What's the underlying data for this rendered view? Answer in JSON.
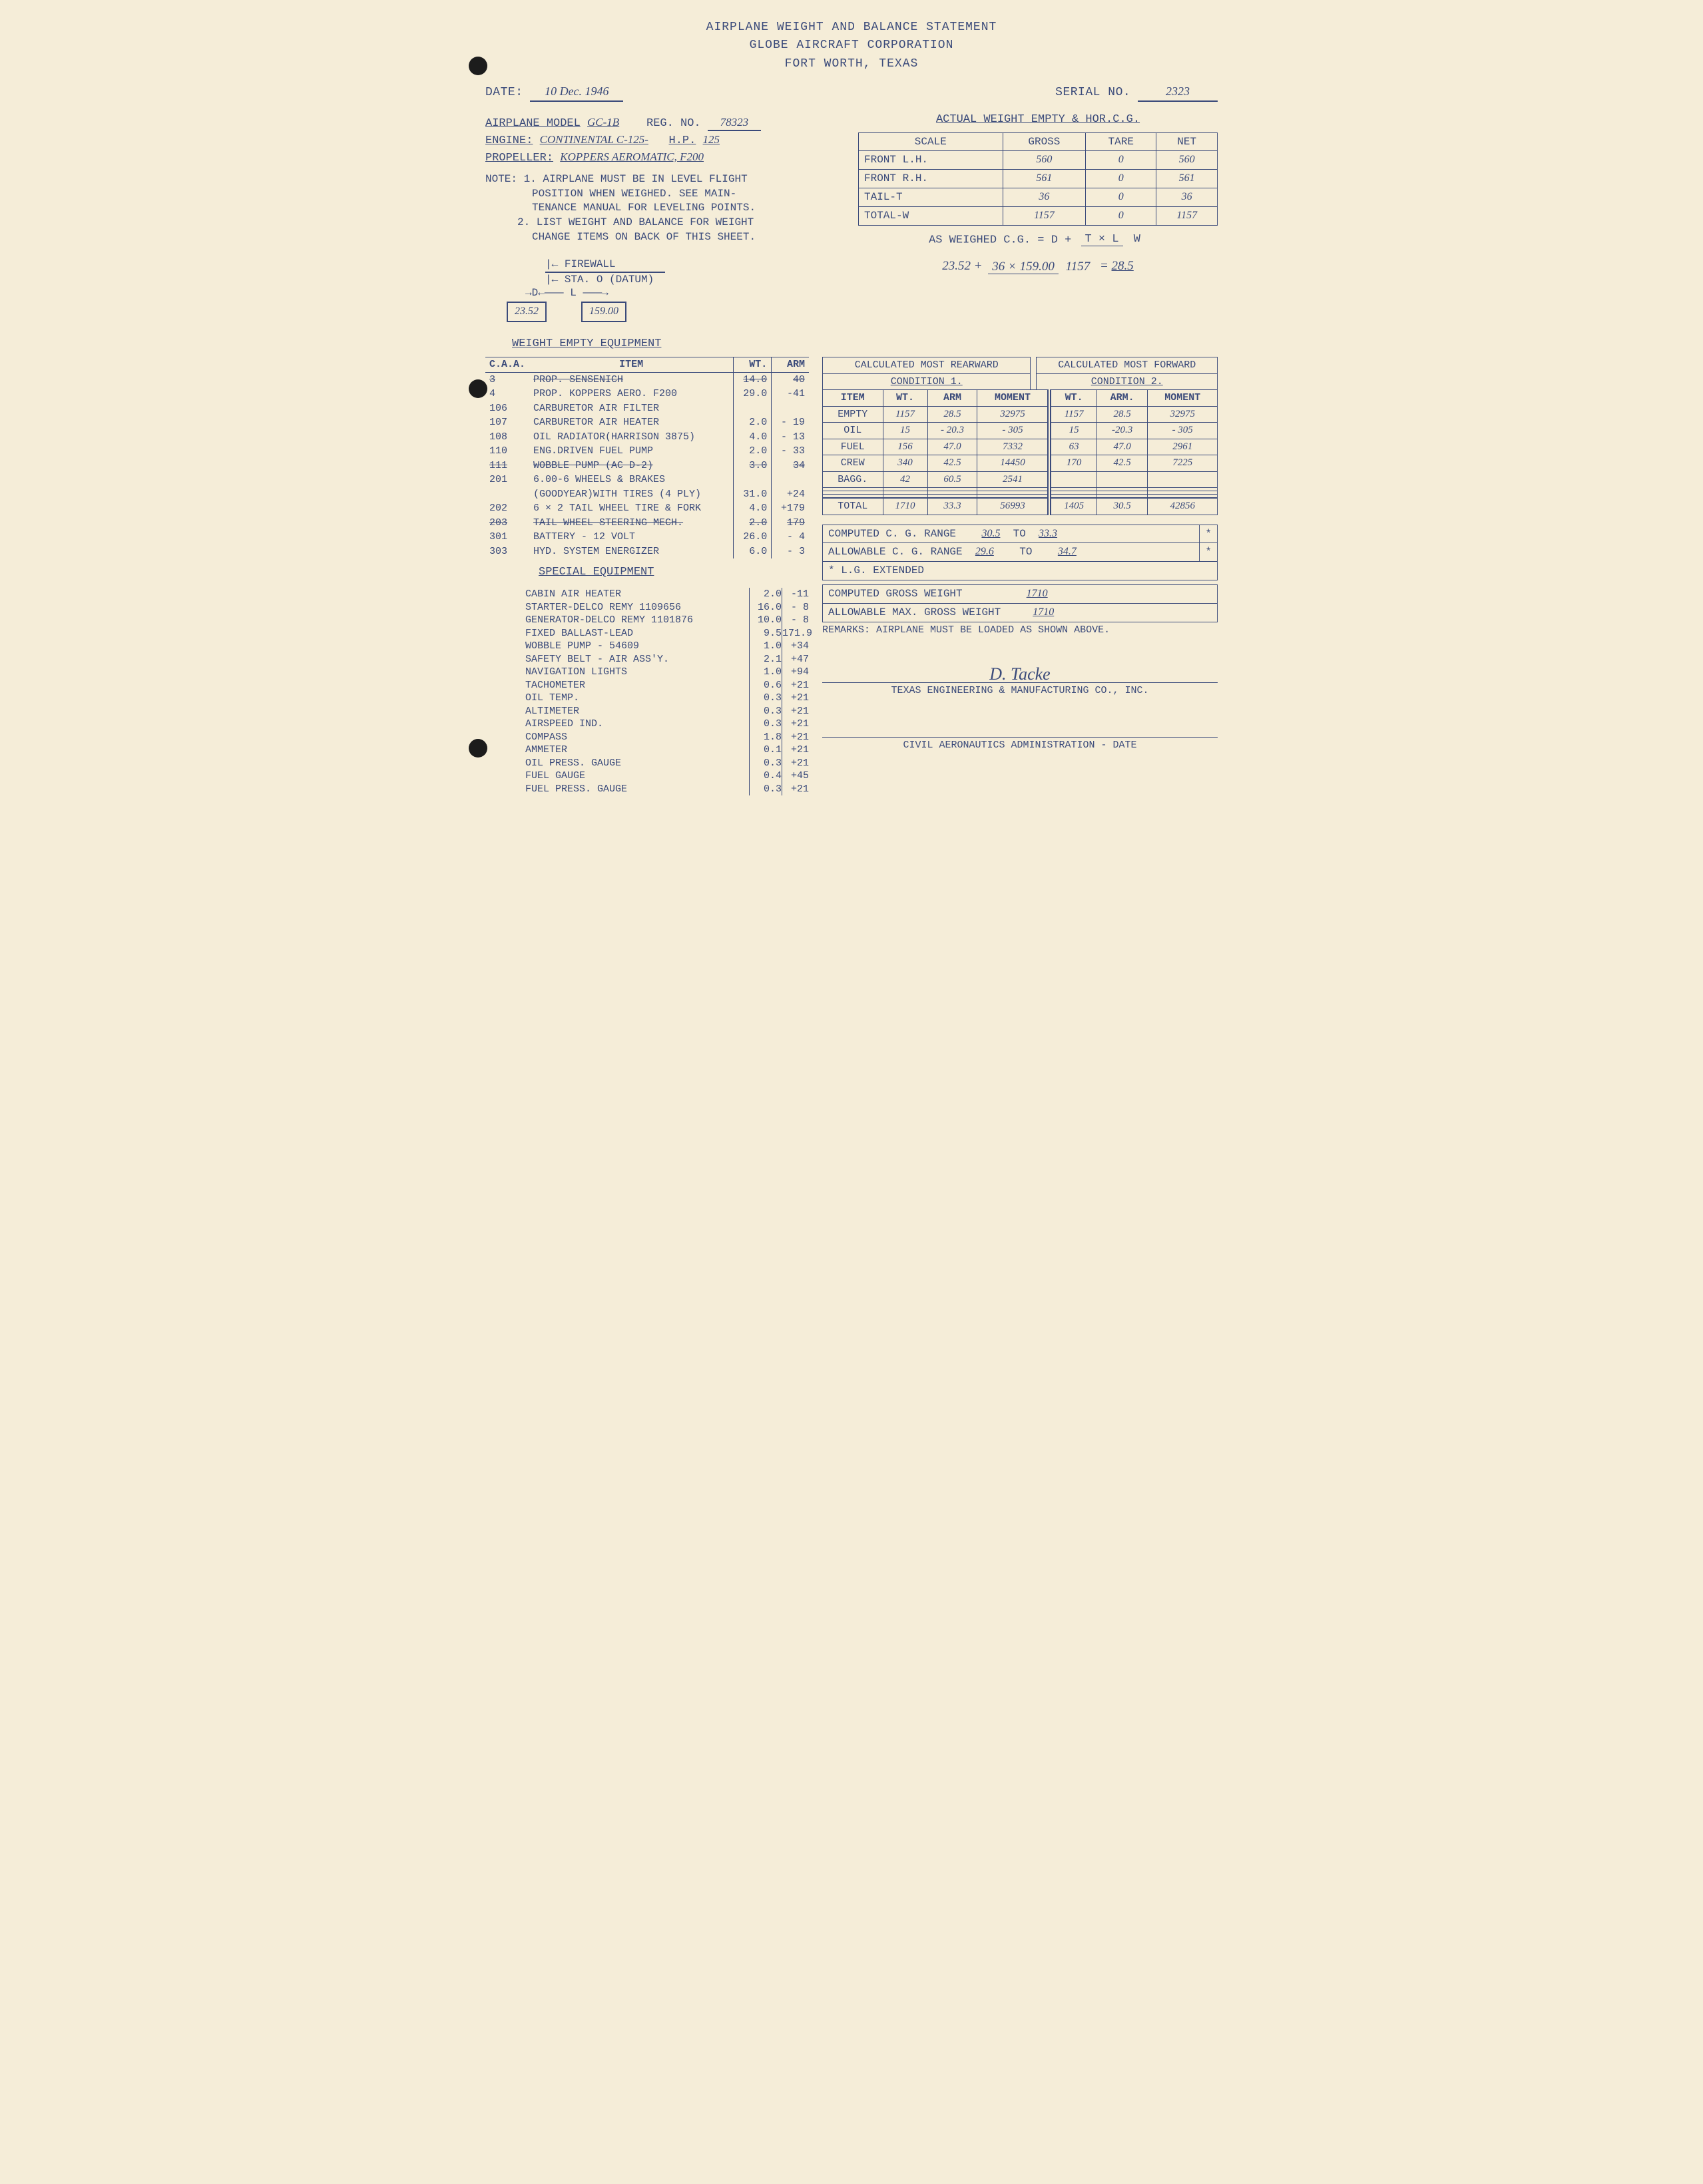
{
  "header": {
    "title": "AIRPLANE WEIGHT AND BALANCE STATEMENT",
    "company": "GLOBE AIRCRAFT CORPORATION",
    "location": "FORT WORTH, TEXAS"
  },
  "top": {
    "date_label": "DATE:",
    "date": "10 Dec. 1946",
    "serial_label": "SERIAL NO.",
    "serial": "2323"
  },
  "info": {
    "model_label": "AIRPLANE MODEL",
    "model": "GC-1B",
    "reg_label": "REG. NO.",
    "reg": "78323",
    "engine_label": "ENGINE:",
    "engine": "CONTINENTAL C-125-",
    "hp_label": "H.P.",
    "hp": "125",
    "prop_label": "PROPELLER:",
    "prop": "KOPPERS AEROMATIC, F200"
  },
  "notes": {
    "label": "NOTE:",
    "n1a": "1. AIRPLANE MUST BE IN LEVEL FLIGHT",
    "n1b": "POSITION WHEN WEIGHED. SEE MAIN-",
    "n1c": "TENANCE MANUAL FOR LEVELING POINTS.",
    "n2a": "2. LIST WEIGHT AND BALANCE FOR WEIGHT",
    "n2b": "CHANGE ITEMS ON BACK OF THIS SHEET."
  },
  "diagram": {
    "firewall": "FIREWALL",
    "datum": "STA. O (DATUM)",
    "d": "D",
    "l": "L",
    "d_val": "23.52",
    "l_val": "159.00"
  },
  "actual_weight": {
    "title": "ACTUAL WEIGHT EMPTY & HOR.C.G.",
    "headers": [
      "SCALE",
      "GROSS",
      "TARE",
      "NET"
    ],
    "rows": [
      {
        "scale": "FRONT L.H.",
        "gross": "560",
        "tare": "0",
        "net": "560"
      },
      {
        "scale": "FRONT R.H.",
        "gross": "561",
        "tare": "0",
        "net": "561"
      },
      {
        "scale": "TAIL-T",
        "gross": "36",
        "tare": "0",
        "net": "36"
      },
      {
        "scale": "TOTAL-W",
        "gross": "1157",
        "tare": "0",
        "net": "1157"
      }
    ],
    "formula_label": "AS WEIGHED C.G.",
    "formula_eq": "= D +",
    "formula_num": "T × L",
    "formula_den": "W",
    "calc_d": "23.52 +",
    "calc_num": "36 × 159.00",
    "calc_den": "1157",
    "calc_result": "28.5"
  },
  "equip": {
    "title": "WEIGHT EMPTY EQUIPMENT",
    "headers": {
      "caa": "C.A.A.",
      "item": "ITEM",
      "wt": "WT.",
      "arm": "ARM"
    },
    "rows": [
      {
        "caa": "3",
        "item": "PROP. SENSENICH",
        "wt": "14.0",
        "arm": "40",
        "struck": true
      },
      {
        "caa": "4",
        "item": "PROP. KOPPERS AERO. F200",
        "wt": "29.0",
        "arm": "-41"
      },
      {
        "caa": "106",
        "item": "CARBURETOR AIR FILTER",
        "wt": "",
        "arm": ""
      },
      {
        "caa": "107",
        "item": "CARBURETOR AIR HEATER",
        "wt": "2.0",
        "arm": "- 19"
      },
      {
        "caa": "108",
        "item": "OIL RADIATOR(HARRISON 3875)",
        "wt": "4.0",
        "arm": "- 13"
      },
      {
        "caa": "110",
        "item": "ENG.DRIVEN FUEL PUMP",
        "wt": "2.0",
        "arm": "- 33"
      },
      {
        "caa": "111",
        "item": "WOBBLE PUMP (AC D-2)",
        "wt": "3.0",
        "arm": "34",
        "struck": true
      },
      {
        "caa": "201",
        "item": "6.00-6 WHEELS & BRAKES",
        "wt": "",
        "arm": ""
      },
      {
        "caa": "",
        "item": "(GOODYEAR)WITH TIRES (4 PLY)",
        "wt": "31.0",
        "arm": "+24"
      },
      {
        "caa": "202",
        "item": "6 × 2 TAIL WHEEL TIRE & FORK",
        "wt": "4.0",
        "arm": "+179"
      },
      {
        "caa": "203",
        "item": "TAIL WHEEL STEERING MECH.",
        "wt": "2.0",
        "arm": "179",
        "struck": true
      },
      {
        "caa": "301",
        "item": "BATTERY - 12 VOLT",
        "wt": "26.0",
        "arm": "- 4"
      },
      {
        "caa": "303",
        "item": "HYD. SYSTEM ENERGIZER",
        "wt": "6.0",
        "arm": "- 3"
      }
    ],
    "special_title": "SPECIAL EQUIPMENT",
    "special": [
      {
        "item": "CABIN AIR HEATER",
        "wt": "2.0",
        "arm": "-11"
      },
      {
        "item": "STARTER-DELCO REMY 1109656",
        "wt": "16.0",
        "arm": "- 8"
      },
      {
        "item": "GENERATOR-DELCO REMY 1101876",
        "wt": "10.0",
        "arm": "- 8"
      },
      {
        "item": "FIXED BALLAST-LEAD",
        "wt": "9.5",
        "arm": "171.9"
      },
      {
        "item": "WOBBLE PUMP - 54609",
        "wt": "1.0",
        "arm": "+34"
      },
      {
        "item": "SAFETY BELT - AIR ASS'Y.",
        "wt": "2.1",
        "arm": "+47"
      },
      {
        "item": "NAVIGATION LIGHTS",
        "wt": "1.0",
        "arm": "+94"
      },
      {
        "item": "TACHOMETER",
        "wt": "0.6",
        "arm": "+21"
      },
      {
        "item": "OIL TEMP.",
        "wt": "0.3",
        "arm": "+21"
      },
      {
        "item": "ALTIMETER",
        "wt": "0.3",
        "arm": "+21"
      },
      {
        "item": "AIRSPEED IND.",
        "wt": "0.3",
        "arm": "+21"
      },
      {
        "item": "COMPASS",
        "wt": "1.8",
        "arm": "+21"
      },
      {
        "item": "AMMETER",
        "wt": "0.1",
        "arm": "+21"
      },
      {
        "item": "OIL PRESS. GAUGE",
        "wt": "0.3",
        "arm": "+21"
      },
      {
        "item": "FUEL GAUGE",
        "wt": "0.4",
        "arm": "+45"
      },
      {
        "item": "FUEL PRESS. GAUGE",
        "wt": "0.3",
        "arm": "+21"
      }
    ]
  },
  "calc": {
    "rear_title": "CALCULATED MOST REARWARD",
    "fwd_title": "CALCULATED MOST FORWARD",
    "cond1": "CONDITION 1.",
    "cond2": "CONDITION 2.",
    "headers": [
      "ITEM",
      "WT.",
      "ARM",
      "MOMENT",
      "WT.",
      "ARM.",
      "MOMENT"
    ],
    "rows": [
      {
        "item": "EMPTY",
        "wt1": "1157",
        "arm1": "28.5",
        "mom1": "32975",
        "wt2": "1157",
        "arm2": "28.5",
        "mom2": "32975"
      },
      {
        "item": "OIL",
        "wt1": "15",
        "arm1": "- 20.3",
        "mom1": "- 305",
        "wt2": "15",
        "arm2": "-20.3",
        "mom2": "- 305"
      },
      {
        "item": "FUEL",
        "wt1": "156",
        "arm1": "47.0",
        "mom1": "7332",
        "wt2": "63",
        "arm2": "47.0",
        "mom2": "2961"
      },
      {
        "item": "CREW",
        "wt1": "340",
        "arm1": "42.5",
        "mom1": "14450",
        "wt2": "170",
        "arm2": "42.5",
        "mom2": "7225"
      },
      {
        "item": "BAGG.",
        "wt1": "42",
        "arm1": "60.5",
        "mom1": "2541",
        "wt2": "",
        "arm2": "",
        "mom2": ""
      },
      {
        "item": "",
        "wt1": "",
        "arm1": "",
        "mom1": "",
        "wt2": "",
        "arm2": "",
        "mom2": ""
      },
      {
        "item": "",
        "wt1": "",
        "arm1": "",
        "mom1": "",
        "wt2": "",
        "arm2": "",
        "mom2": ""
      },
      {
        "item": "",
        "wt1": "",
        "arm1": "",
        "mom1": "",
        "wt2": "",
        "arm2": "",
        "mom2": ""
      }
    ],
    "total": {
      "item": "TOTAL",
      "wt1": "1710",
      "arm1": "33.3",
      "mom1": "56993",
      "wt2": "1405",
      "arm2": "30.5",
      "mom2": "42856"
    }
  },
  "ranges": {
    "computed_cg_label": "COMPUTED C. G. RANGE",
    "computed_cg_from": "30.5",
    "to": "TO",
    "computed_cg_to": "33.3",
    "star": "*",
    "allowable_cg_label": "ALLOWABLE C. G. RANGE",
    "allowable_cg_from": "29.6",
    "allowable_cg_to": "34.7",
    "lg_ext": "* L.G. EXTENDED",
    "computed_gw_label": "COMPUTED GROSS WEIGHT",
    "computed_gw": "1710",
    "allowable_gw_label": "ALLOWABLE MAX. GROSS WEIGHT",
    "allowable_gw": "1710",
    "remarks_label": "REMARKS:",
    "remarks": "AIRPLANE MUST BE LOADED AS SHOWN ABOVE."
  },
  "sig": {
    "name": "D. Tacke",
    "company": "TEXAS ENGINEERING & MANUFACTURING CO., INC.",
    "caa_label": "CIVIL AERONAUTICS ADMINISTRATION - DATE"
  }
}
